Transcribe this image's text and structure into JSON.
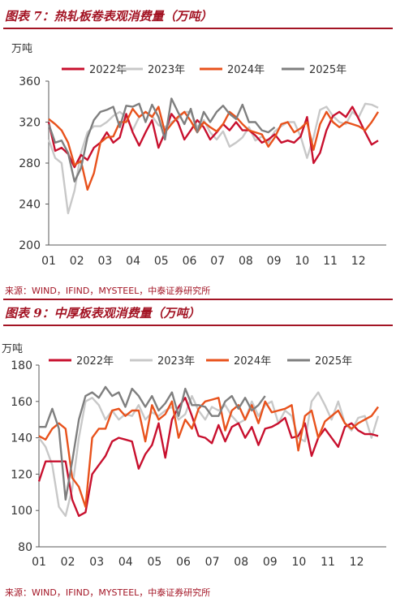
{
  "figures": [
    {
      "title": "图表 7：热轧板卷表观消费量（万吨）",
      "source": "来源：WIND，IFIND，MYSTEEL，中泰证券研究所",
      "unit": "万吨"
    },
    {
      "title": "图表 9：中厚板表观消费量（万吨）",
      "source": "来源：WIND，IFIND，MYSTEEL，中泰证券研究所",
      "unit": "万吨"
    }
  ],
  "series_colors": {
    "2022年": "#c8102e",
    "2023年": "#c8c8c8",
    "2024年": "#e8521c",
    "2025年": "#7f7f7f"
  },
  "chart_data": [
    {
      "type": "line",
      "title": "",
      "xlabel": "",
      "ylabel": "万吨",
      "x_ticks": [
        "01",
        "02",
        "03",
        "04",
        "05",
        "06",
        "07",
        "08",
        "09",
        "10",
        "11",
        "12"
      ],
      "ylim": [
        200,
        360
      ],
      "yticks": [
        200,
        240,
        280,
        320,
        360
      ],
      "grid": false,
      "legend": "top",
      "x_unit": "week_of_year_1_to_52",
      "series": [
        {
          "name": "2022年",
          "x": [
            1,
            2,
            3,
            4,
            5,
            6,
            7,
            8,
            9,
            10,
            11,
            12,
            13,
            14,
            15,
            16,
            17,
            18,
            19,
            20,
            21,
            22,
            23,
            24,
            25,
            26,
            27,
            28,
            29,
            30,
            31,
            32,
            33,
            34,
            35,
            36,
            37,
            38,
            39,
            40,
            41,
            42,
            43,
            44,
            45,
            46,
            47,
            48,
            49,
            50,
            51,
            52
          ],
          "values": [
            320,
            292,
            295,
            289,
            276,
            288,
            283,
            295,
            300,
            310,
            300,
            305,
            328,
            310,
            297,
            310,
            322,
            295,
            310,
            328,
            320,
            303,
            312,
            322,
            315,
            303,
            310,
            318,
            312,
            320,
            312,
            312,
            307,
            300,
            303,
            308,
            300,
            302,
            300,
            306,
            325,
            280,
            290,
            312,
            326,
            330,
            325,
            335,
            323,
            310,
            298,
            302
          ]
        },
        {
          "name": "2023年",
          "x": [
            1,
            2,
            3,
            4,
            5,
            6,
            7,
            8,
            9,
            10,
            11,
            12,
            13,
            14,
            15,
            16,
            17,
            18,
            19,
            20,
            21,
            22,
            23,
            24,
            25,
            26,
            27,
            28,
            29,
            30,
            31,
            32,
            33,
            34,
            35,
            36,
            37,
            38,
            39,
            40,
            41,
            42,
            43,
            44,
            45,
            46,
            47,
            48,
            49,
            50,
            51,
            52
          ],
          "values": [
            303,
            285,
            280,
            231,
            253,
            290,
            310,
            316,
            316,
            320,
            326,
            330,
            325,
            312,
            325,
            330,
            326,
            317,
            315,
            320,
            323,
            330,
            330,
            315,
            322,
            310,
            303,
            311,
            296,
            300,
            305,
            315,
            302,
            306,
            300,
            311,
            316,
            320,
            320,
            306,
            285,
            305,
            332,
            335,
            326,
            320,
            318,
            330,
            325,
            338,
            337,
            334
          ]
        },
        {
          "name": "2024年",
          "x": [
            1,
            2,
            3,
            4,
            5,
            6,
            7,
            8,
            9,
            10,
            11,
            12,
            13,
            14,
            15,
            16,
            17,
            18,
            19,
            20,
            21,
            22,
            23,
            24,
            25,
            26,
            27,
            28,
            29,
            30,
            31,
            32,
            33,
            34,
            35,
            36,
            37,
            38,
            39,
            40,
            41,
            42,
            43,
            44,
            45,
            46,
            47,
            48,
            49,
            50,
            51,
            52
          ],
          "values": [
            323,
            318,
            312,
            300,
            278,
            282,
            254,
            270,
            300,
            305,
            306,
            320,
            320,
            333,
            325,
            330,
            325,
            335,
            310,
            318,
            325,
            330,
            321,
            310,
            320,
            315,
            311,
            318,
            330,
            325,
            318,
            312,
            310,
            308,
            296,
            305,
            318,
            320,
            310,
            314,
            320,
            293,
            318,
            330,
            320,
            315,
            320,
            318,
            316,
            312,
            320,
            330
          ]
        },
        {
          "name": "2025年",
          "x": [
            1,
            2,
            3,
            4,
            5,
            6,
            7,
            8,
            9,
            10,
            11,
            12,
            13,
            14,
            15,
            16,
            17,
            18,
            19,
            20,
            21,
            22,
            23,
            24,
            25,
            26,
            27,
            28,
            29,
            30,
            31,
            32,
            33,
            34,
            35,
            36
          ],
          "values": [
            318,
            300,
            302,
            290,
            262,
            275,
            305,
            322,
            330,
            332,
            335,
            315,
            336,
            335,
            338,
            320,
            337,
            325,
            303,
            343,
            330,
            318,
            333,
            310,
            330,
            320,
            330,
            336,
            328,
            323,
            337,
            320,
            320,
            312,
            310,
            315
          ]
        }
      ]
    },
    {
      "type": "line",
      "title": "",
      "xlabel": "",
      "ylabel": "万吨",
      "x_ticks": [
        "01",
        "02",
        "03",
        "04",
        "05",
        "06",
        "07",
        "08",
        "09",
        "10",
        "11",
        "12"
      ],
      "ylim": [
        80,
        180
      ],
      "yticks": [
        80,
        100,
        120,
        140,
        160,
        180
      ],
      "grid": false,
      "legend": "top",
      "x_unit": "week_of_year_1_to_52",
      "series": [
        {
          "name": "2022年",
          "x": [
            1,
            2,
            3,
            4,
            5,
            6,
            7,
            8,
            9,
            10,
            11,
            12,
            13,
            14,
            15,
            16,
            17,
            18,
            19,
            20,
            21,
            22,
            23,
            24,
            25,
            26,
            27,
            28,
            29,
            30,
            31,
            32,
            33,
            34,
            35,
            36,
            37,
            38,
            39,
            40,
            41,
            42,
            43,
            44,
            45,
            46,
            47,
            48,
            49,
            50,
            51,
            52
          ],
          "values": [
            116,
            127,
            127,
            127,
            127,
            106,
            97,
            99,
            120,
            125,
            130,
            138,
            140,
            139,
            138,
            123,
            131,
            136,
            148,
            129,
            150,
            157,
            162,
            152,
            141,
            140,
            137,
            147,
            138,
            146,
            148,
            140,
            146,
            136,
            145,
            146,
            148,
            151,
            140,
            141,
            148,
            130,
            140,
            145,
            140,
            135,
            146,
            148,
            144,
            142,
            142,
            141
          ]
        },
        {
          "name": "2023年",
          "x": [
            1,
            2,
            3,
            4,
            5,
            6,
            7,
            8,
            9,
            10,
            11,
            12,
            13,
            14,
            15,
            16,
            17,
            18,
            19,
            20,
            21,
            22,
            23,
            24,
            25,
            26,
            27,
            28,
            29,
            30,
            31,
            32,
            33,
            34,
            35,
            36,
            37,
            38,
            39,
            40,
            41,
            42,
            43,
            44,
            45,
            46,
            47,
            48,
            49,
            50,
            51,
            52
          ],
          "values": [
            140,
            135,
            125,
            102,
            97,
            112,
            140,
            160,
            162,
            158,
            150,
            155,
            150,
            153,
            152,
            158,
            150,
            154,
            152,
            155,
            157,
            150,
            153,
            163,
            155,
            150,
            157,
            155,
            158,
            152,
            148,
            150,
            160,
            152,
            158,
            160,
            148,
            155,
            152,
            140,
            138,
            160,
            165,
            158,
            150,
            160,
            148,
            144,
            151,
            152,
            140,
            152
          ]
        },
        {
          "name": "2024年",
          "x": [
            1,
            2,
            3,
            4,
            5,
            6,
            7,
            8,
            9,
            10,
            11,
            12,
            13,
            14,
            15,
            16,
            17,
            18,
            19,
            20,
            21,
            22,
            23,
            24,
            25,
            26,
            27,
            28,
            29,
            30,
            31,
            32,
            33,
            34,
            35,
            36,
            37,
            38,
            39,
            40,
            41,
            42,
            43,
            44,
            45,
            46,
            47,
            48,
            49,
            50,
            51,
            52
          ],
          "values": [
            141,
            139,
            145,
            148,
            145,
            118,
            113,
            102,
            140,
            145,
            145,
            155,
            156,
            152,
            155,
            155,
            138,
            158,
            150,
            153,
            160,
            140,
            150,
            145,
            156,
            160,
            161,
            162,
            144,
            155,
            158,
            150,
            158,
            148,
            160,
            154,
            155,
            156,
            158,
            133,
            152,
            155,
            140,
            149,
            152,
            155,
            148,
            145,
            148,
            150,
            152,
            157
          ]
        },
        {
          "name": "2025年",
          "x": [
            1,
            2,
            3,
            4,
            5,
            6,
            7,
            8,
            9,
            10,
            11,
            12,
            13,
            14,
            15,
            16,
            17,
            18,
            19,
            20,
            21,
            22,
            23,
            24,
            25,
            26,
            27,
            28,
            29,
            30,
            31,
            32,
            33,
            34,
            35
          ],
          "values": [
            146,
            146,
            156,
            145,
            106,
            127,
            150,
            163,
            165,
            162,
            168,
            163,
            165,
            157,
            167,
            163,
            157,
            163,
            155,
            159,
            165,
            152,
            167,
            158,
            158,
            157,
            152,
            152,
            160,
            163,
            156,
            162,
            155,
            158,
            163
          ]
        }
      ]
    }
  ]
}
